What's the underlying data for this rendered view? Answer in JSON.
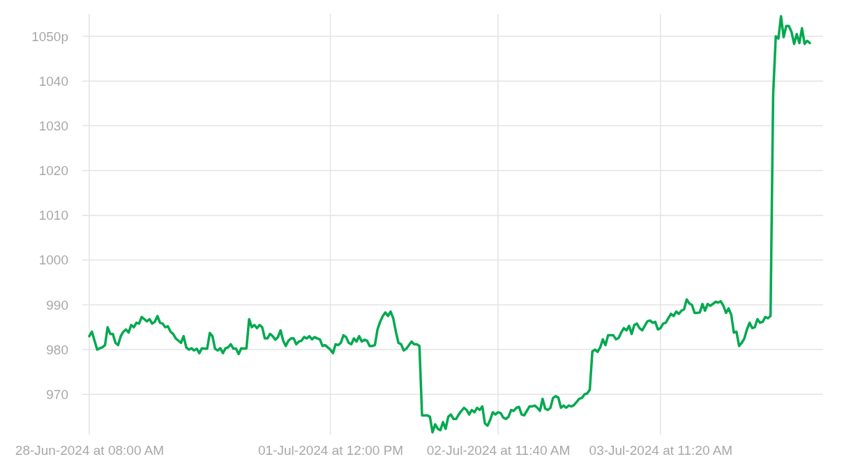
{
  "chart_data": {
    "type": "line",
    "ylim": [
      961,
      1055
    ],
    "categories": [
      "28-Jun-2024 at 08:00 AM",
      null,
      null,
      null,
      null,
      null,
      null,
      null,
      null,
      null,
      null,
      null,
      null,
      null,
      null,
      null,
      null,
      null,
      null,
      null,
      null,
      null,
      null,
      null,
      null,
      null,
      null,
      null,
      null,
      null,
      null,
      null,
      null,
      null,
      null,
      null,
      null,
      null,
      null,
      null,
      null,
      null,
      null,
      null,
      null,
      null,
      null,
      null,
      null,
      null,
      null,
      null,
      null,
      null,
      null,
      null,
      null,
      null,
      null,
      null,
      null,
      null,
      null,
      null,
      null,
      null,
      null,
      null,
      null,
      null,
      null,
      null,
      null,
      null,
      null,
      null,
      null,
      null,
      null,
      null,
      null,
      null,
      null,
      null,
      null,
      null,
      null,
      null,
      null,
      null,
      null,
      null,
      "01-Jul-2024 at 12:00 PM",
      null,
      null,
      null,
      null,
      null,
      null,
      null,
      null,
      null,
      null,
      null,
      null,
      null,
      null,
      null,
      null,
      null,
      null,
      null,
      null,
      null,
      null,
      null,
      null,
      null,
      null,
      null,
      null,
      null,
      null,
      null,
      null,
      null,
      null,
      null,
      null,
      null,
      null,
      null,
      null,
      null,
      null,
      null,
      null,
      null,
      null,
      null,
      null,
      null,
      null,
      null,
      null,
      null,
      null,
      null,
      null,
      null,
      null,
      null,
      null,
      null,
      null,
      null,
      "02-Jul-2024 at 11:40 AM",
      null,
      null,
      null,
      null,
      null,
      null,
      null,
      null,
      null,
      null,
      null,
      null,
      null,
      null,
      null,
      null,
      null,
      null,
      null,
      null,
      null,
      null,
      null,
      null,
      null,
      null,
      null,
      null,
      null,
      null,
      null,
      null,
      null,
      null,
      null,
      null,
      null,
      null,
      null,
      null,
      null,
      null,
      null,
      null,
      null,
      null,
      null,
      null,
      null,
      null,
      null,
      null,
      null,
      null,
      null,
      null,
      null,
      null,
      null,
      null,
      null,
      "03-Jul-2024 at 11:20 AM",
      null,
      null,
      null,
      null,
      null,
      null,
      null,
      null,
      null,
      null,
      null,
      null,
      null,
      null,
      null,
      null,
      null,
      null,
      null,
      null,
      null,
      null,
      null,
      null,
      null,
      null,
      null,
      null,
      null,
      null,
      null,
      null,
      null,
      null,
      null,
      null,
      null,
      null,
      null,
      null,
      null,
      null,
      null,
      null,
      null,
      null,
      null,
      null,
      null,
      null,
      null,
      null,
      null,
      null,
      null,
      null,
      null
    ],
    "yticks": [
      970,
      980,
      990,
      1000,
      1010,
      1020,
      1030,
      1040,
      {
        "value": 1050,
        "label": "1050p"
      }
    ],
    "grid": true,
    "series": [
      {
        "color": "#00a94f",
        "values": [
          983,
          984,
          982,
          980,
          980.3,
          980.5,
          981,
          985,
          983.5,
          983.5,
          981.5,
          981,
          983,
          984,
          984.5,
          983.8,
          985.5,
          985,
          986,
          985.8,
          987.3,
          986.8,
          986.3,
          986.8,
          985.8,
          986.2,
          987.5,
          986,
          985.8,
          985,
          985.2,
          984,
          983.5,
          982.5,
          982,
          981.5,
          983,
          980.5,
          980,
          980.3,
          979.8,
          980.2,
          979.2,
          980.3,
          980.2,
          980.2,
          983.7,
          983,
          980.2,
          979.8,
          980.3,
          979.2,
          980.3,
          980.5,
          981.2,
          980.2,
          980.2,
          979,
          980.3,
          980.2,
          980.3,
          986.8,
          985,
          985.5,
          984.8,
          985.5,
          985,
          982.5,
          982.5,
          983.5,
          983,
          982.2,
          982.8,
          984.3,
          982,
          980.8,
          982,
          982.5,
          982.5,
          981.2,
          981.8,
          982,
          982.8,
          982.5,
          983,
          982.3,
          982.8,
          982.5,
          982.3,
          980.8,
          981,
          980.5,
          980,
          979.2,
          981.2,
          981,
          981.5,
          983.2,
          982.8,
          981.5,
          981.2,
          982.5,
          981.8,
          983,
          981.8,
          982.2,
          982,
          980.8,
          980.8,
          981,
          984.5,
          986.2,
          987.5,
          988.3,
          987.5,
          988.5,
          987,
          984,
          981.5,
          981.2,
          979.8,
          980.2,
          981,
          981.8,
          981.2,
          981.2,
          980.8,
          965.3,
          965.3,
          965.3,
          965,
          961.5,
          963.3,
          962.3,
          962,
          963.8,
          962.3,
          965,
          965.5,
          964.5,
          964.5,
          965.5,
          966.3,
          967,
          966.5,
          965.5,
          966.5,
          966,
          967,
          966.5,
          967.3,
          963.5,
          963,
          964.3,
          966,
          965.5,
          966,
          965.8,
          964.8,
          964.5,
          965,
          966.5,
          966.3,
          967,
          967.2,
          965.5,
          965.3,
          966.3,
          967.3,
          967.3,
          967.5,
          967,
          966.3,
          969,
          966.8,
          966.5,
          967,
          969.2,
          969.6,
          969.3,
          967,
          967.5,
          967,
          967.5,
          967.3,
          967.6,
          968.3,
          969,
          969.2,
          970,
          970.2,
          971,
          979.6,
          980,
          979.5,
          980.5,
          982.3,
          981,
          983.2,
          983.2,
          983.2,
          982.3,
          982.6,
          983.8,
          984.8,
          984.3,
          985.3,
          983.5,
          985.5,
          985.8,
          984.8,
          984.3,
          985.3,
          986.3,
          986.5,
          986,
          986.2,
          984.5,
          984.8,
          985.8,
          986,
          987,
          988,
          987.5,
          988.5,
          988,
          988.7,
          989,
          991.2,
          990.3,
          990,
          988.2,
          988.2,
          988.3,
          990.2,
          988.7,
          990.2,
          989.8,
          990.2,
          990.7,
          990.5,
          990.8,
          989.8,
          988.2,
          989.2,
          987.8,
          983.8,
          984,
          980.8,
          981.5,
          982.5,
          984.5,
          986,
          984.8,
          985,
          986.8,
          986,
          986.2,
          987.3,
          987,
          987.5,
          1037,
          1050,
          1049.5,
          1054.5,
          1049.8,
          1052.3,
          1052.3,
          1051,
          1048.3,
          1050.5,
          1048.5,
          1051.8,
          1048.3,
          1049,
          1048.5
        ]
      }
    ]
  }
}
